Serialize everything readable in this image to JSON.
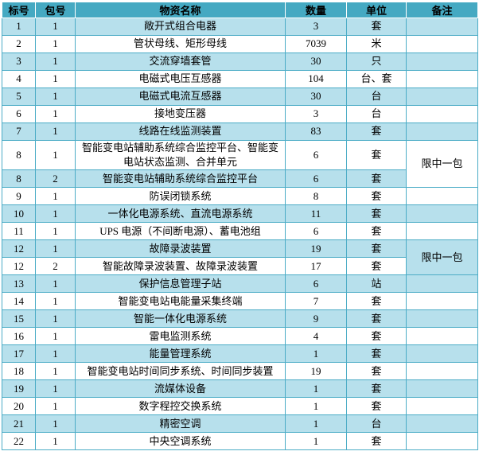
{
  "colors": {
    "header_bg": "#45a9c2",
    "row_alt_bg": "#b7e0ec",
    "row_bg": "#ffffff",
    "grid_border": "#4bacc6",
    "header_grid_border": "#ffffff",
    "text": "#000000"
  },
  "table": {
    "columns": [
      "标号",
      "包号",
      "物资名称",
      "数量",
      "单位",
      "备注"
    ],
    "rows": [
      {
        "label": "1",
        "pkg": "1",
        "name": "敞开式组合电器",
        "qty": "3",
        "unit": "套",
        "remark": ""
      },
      {
        "label": "2",
        "pkg": "1",
        "name": "管状母线、矩形母线",
        "qty": "7039",
        "unit": "米",
        "remark": ""
      },
      {
        "label": "3",
        "pkg": "1",
        "name": "交流穿墙套管",
        "qty": "30",
        "unit": "只",
        "remark": ""
      },
      {
        "label": "4",
        "pkg": "1",
        "name": "电磁式电压互感器",
        "qty": "104",
        "unit": "台、套",
        "remark": ""
      },
      {
        "label": "5",
        "pkg": "1",
        "name": "电磁式电流互感器",
        "qty": "30",
        "unit": "台",
        "remark": ""
      },
      {
        "label": "6",
        "pkg": "1",
        "name": "接地变压器",
        "qty": "3",
        "unit": "台",
        "remark": ""
      },
      {
        "label": "7",
        "pkg": "1",
        "name": "线路在线监测装置",
        "qty": "83",
        "unit": "套",
        "remark": ""
      },
      {
        "label": "8",
        "pkg": "1",
        "name": "智能变电站辅助系统综合监控平台、智能变电站状态监测、合并单元",
        "qty": "6",
        "unit": "套",
        "remark": "限中一包",
        "remark_rowspan": 2
      },
      {
        "label": "8",
        "pkg": "2",
        "name": "智能变电站辅助系统综合监控平台",
        "qty": "6",
        "unit": "套",
        "remark_merged": true
      },
      {
        "label": "9",
        "pkg": "1",
        "name": "防误闭锁系统",
        "qty": "8",
        "unit": "套",
        "remark": ""
      },
      {
        "label": "10",
        "pkg": "1",
        "name": "一体化电源系统、直流电源系统",
        "qty": "11",
        "unit": "套",
        "remark": ""
      },
      {
        "label": "11",
        "pkg": "1",
        "name": "UPS 电源（不间断电源）、蓄电池组",
        "qty": "6",
        "unit": "套",
        "remark": ""
      },
      {
        "label": "12",
        "pkg": "1",
        "name": "故障录波装置",
        "qty": "19",
        "unit": "套",
        "remark": "限中一包",
        "remark_rowspan": 2
      },
      {
        "label": "12",
        "pkg": "2",
        "name": "智能故障录波装置、故障录波装置",
        "qty": "17",
        "unit": "套",
        "remark_merged": true
      },
      {
        "label": "13",
        "pkg": "1",
        "name": "保护信息管理子站",
        "qty": "6",
        "unit": "站",
        "remark": ""
      },
      {
        "label": "14",
        "pkg": "1",
        "name": "智能变电站电能量采集终端",
        "qty": "7",
        "unit": "套",
        "remark": ""
      },
      {
        "label": "15",
        "pkg": "1",
        "name": "智能一体化电源系统",
        "qty": "9",
        "unit": "套",
        "remark": ""
      },
      {
        "label": "16",
        "pkg": "1",
        "name": "雷电监测系统",
        "qty": "4",
        "unit": "套",
        "remark": ""
      },
      {
        "label": "17",
        "pkg": "1",
        "name": "能量管理系统",
        "qty": "1",
        "unit": "套",
        "remark": ""
      },
      {
        "label": "18",
        "pkg": "1",
        "name": "智能变电站时间同步系统、时间同步装置",
        "qty": "19",
        "unit": "套",
        "remark": ""
      },
      {
        "label": "19",
        "pkg": "1",
        "name": "流媒体设备",
        "qty": "1",
        "unit": "套",
        "remark": ""
      },
      {
        "label": "20",
        "pkg": "1",
        "name": "数字程控交换系统",
        "qty": "1",
        "unit": "套",
        "remark": ""
      },
      {
        "label": "21",
        "pkg": "1",
        "name": "精密空调",
        "qty": "1",
        "unit": "台",
        "remark": ""
      },
      {
        "label": "22",
        "pkg": "1",
        "name": "中央空调系统",
        "qty": "1",
        "unit": "套",
        "remark": ""
      }
    ]
  }
}
